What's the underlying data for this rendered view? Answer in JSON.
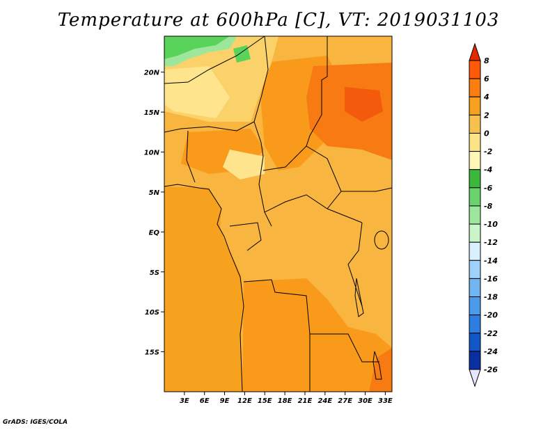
{
  "title": "Temperature at 600hPa [C], VT: 2019031103",
  "credit": "GrADS: IGES/COLA",
  "map": {
    "lon_range": [
      0,
      34
    ],
    "lat_range": [
      -20,
      24.5
    ],
    "lat_ticks": [
      {
        "value": 20,
        "label": "20N"
      },
      {
        "value": 15,
        "label": "15N"
      },
      {
        "value": 10,
        "label": "10N"
      },
      {
        "value": 5,
        "label": "5N"
      },
      {
        "value": 0,
        "label": "EQ"
      },
      {
        "value": -5,
        "label": "5S"
      },
      {
        "value": -10,
        "label": "10S"
      },
      {
        "value": -15,
        "label": "15S"
      }
    ],
    "lon_ticks": [
      {
        "value": 3,
        "label": "3E"
      },
      {
        "value": 6,
        "label": "6E"
      },
      {
        "value": 9,
        "label": "9E"
      },
      {
        "value": 12,
        "label": "12E"
      },
      {
        "value": 15,
        "label": "15E"
      },
      {
        "value": 18,
        "label": "18E"
      },
      {
        "value": 21,
        "label": "21E"
      },
      {
        "value": 24,
        "label": "24E"
      },
      {
        "value": 27,
        "label": "27E"
      },
      {
        "value": 30,
        "label": "30E"
      },
      {
        "value": 33,
        "label": "33E"
      }
    ]
  },
  "colorbar": {
    "levels": [
      "8",
      "6",
      "4",
      "2",
      "0",
      "-2",
      "-4",
      "-6",
      "-8",
      "-10",
      "-12",
      "-14",
      "-16",
      "-18",
      "-20",
      "-22",
      "-24",
      "-26"
    ],
    "colors": [
      "#ff2d00",
      "#ff5a0a",
      "#fb7f10",
      "#f8a11e",
      "#f8c04c",
      "#fde489",
      "#fff7b8",
      "#3ab83a",
      "#6bd36b",
      "#9de79d",
      "#c9f5c9",
      "#d9f1ff",
      "#9fd2fa",
      "#6fb6f2",
      "#4a9bea",
      "#2c7fe0",
      "#1257c8",
      "#0a2fa0",
      "#050a5a"
    ],
    "top_arrow_color": "#e12a00",
    "bottom_arrow_color": "#e8e6ff"
  },
  "fill_colors": {
    "ocean": "#f7a21e",
    "land": "#f8b540",
    "warm": "#f99a1a",
    "hot": "#f77a12",
    "hottest": "#f45a0c",
    "cool": "#fbd26a",
    "cooler": "#fde48d",
    "green": "#5ad35a",
    "lightgreen": "#9de79d"
  }
}
